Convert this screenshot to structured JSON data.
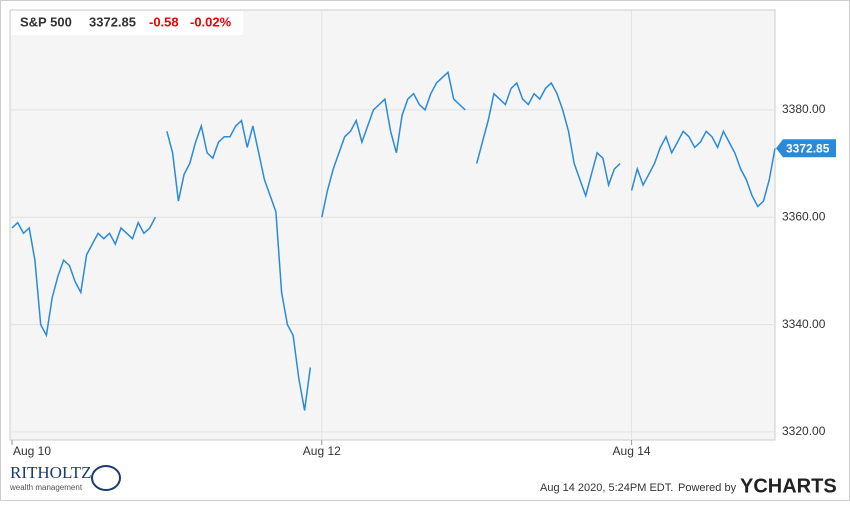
{
  "chart_data": {
    "type": "line",
    "header": {
      "name": "S&P 500",
      "change": "-0.58",
      "change_pct": "-0.02%"
    },
    "categories": [
      "Aug 10",
      null,
      null,
      null,
      null,
      null,
      null,
      null,
      null,
      null,
      null,
      null,
      null,
      null,
      null,
      null,
      null,
      null,
      null,
      null,
      null,
      null,
      null,
      null,
      null,
      null,
      null,
      null,
      null,
      null,
      null,
      null,
      null,
      null,
      null,
      null,
      null,
      null,
      null,
      null,
      null,
      null,
      null,
      null,
      null,
      null,
      null,
      null,
      null,
      null,
      null,
      null,
      null,
      null,
      "Aug 12",
      null,
      null,
      null,
      null,
      null,
      null,
      null,
      null,
      null,
      null,
      null,
      null,
      null,
      null,
      null,
      null,
      null,
      null,
      null,
      null,
      null,
      null,
      null,
      null,
      null,
      null,
      null,
      null,
      null,
      null,
      null,
      null,
      null,
      null,
      null,
      null,
      null,
      null,
      null,
      null,
      null,
      null,
      null,
      null,
      null,
      null,
      null,
      null,
      null,
      null,
      null,
      null,
      null,
      "Aug 14",
      null,
      null,
      null,
      null,
      null,
      null,
      null,
      null,
      null,
      null,
      null,
      null,
      null,
      null,
      null,
      null,
      null,
      null,
      null,
      null,
      null,
      null,
      null,
      null,
      null
    ],
    "series": [
      {
        "name": "S&P 500",
        "color": "#2b8ad8",
        "values": [
          3358,
          3359,
          3357,
          3358,
          3352,
          3340,
          3338,
          3345,
          3349,
          3352,
          3351,
          3348,
          3346,
          3353,
          3355,
          3357,
          3356,
          3357,
          3355,
          3358,
          3357,
          3356,
          3359,
          3357,
          3358,
          3360,
          null,
          3376,
          3372,
          3363,
          3368,
          3370,
          3374,
          3377,
          3372,
          3371,
          3374,
          3375,
          3375,
          3377,
          3378,
          3373,
          3377,
          3372,
          3367,
          3364,
          3361,
          3346,
          3340,
          3338,
          3330,
          3324,
          3332,
          null,
          3360,
          3365,
          3369,
          3372,
          3375,
          3376,
          3378,
          3374,
          3377,
          3380,
          3381,
          3382,
          3376,
          3372,
          3379,
          3382,
          3383,
          3381,
          3380,
          3383,
          3385,
          3386,
          3387,
          3382,
          3381,
          3380,
          null,
          3370,
          3374,
          3378,
          3383,
          3382,
          3381,
          3384,
          3385,
          3382,
          3381,
          3383,
          3382,
          3384,
          3385,
          3383,
          3380,
          3376,
          3370,
          3367,
          3364,
          3368,
          3372,
          3371,
          3366,
          3369,
          3370,
          null,
          3365,
          3369,
          3366,
          3368,
          3370,
          3373,
          3375,
          3372,
          3374,
          3376,
          3375,
          3373,
          3374,
          3376,
          3375,
          3373,
          3376,
          3374,
          3372,
          3369,
          3367,
          3364,
          3362,
          3363,
          3367,
          3372.85
        ]
      }
    ],
    "ylim": [
      3318.5,
      3398.6
    ],
    "yticks": [
      {
        "value": 3320,
        "label": "3320.00"
      },
      {
        "value": 3340,
        "label": "3340.00"
      },
      {
        "value": 3360,
        "label": "3360.00"
      },
      {
        "value": 3380,
        "label": "3380.00"
      }
    ],
    "grid": true,
    "footer": {
      "timestamp": "Aug 14 2020, 5:24PM EDT.",
      "powered": "Powered by",
      "brand": "YCHARTS",
      "logo": "RITHOLTZ",
      "logo_sub": "wealth management"
    }
  }
}
